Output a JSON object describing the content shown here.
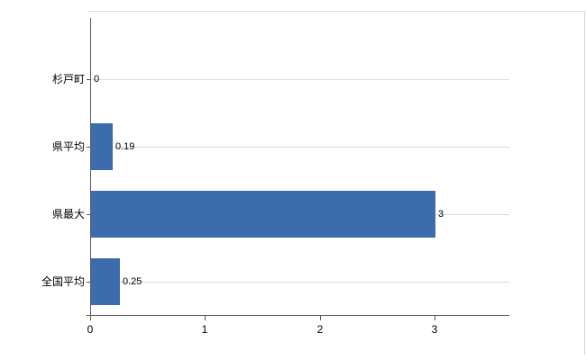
{
  "chart_data": {
    "type": "bar",
    "orientation": "horizontal",
    "title": "",
    "xlabel": "",
    "ylabel": "",
    "categories": [
      "杉戸町",
      "県平均",
      "県最大",
      "全国平均"
    ],
    "values": [
      0,
      0.19,
      3,
      0.25
    ],
    "value_labels": [
      "0",
      "0.19",
      "3",
      "0.25"
    ],
    "x_ticks": [
      0,
      1,
      2,
      3
    ],
    "x_tick_labels": [
      "0",
      "1",
      "2",
      "3"
    ],
    "xlim": [
      0,
      3.65
    ],
    "grid": "horizontal-category-gridlines",
    "legend": "none",
    "colors": {
      "bar": "#3c6cae",
      "gridline": "#d9d9d9",
      "axis": "#595959",
      "frame": "#d9d9d9",
      "text": "#000000",
      "background": "#ffffff"
    }
  }
}
